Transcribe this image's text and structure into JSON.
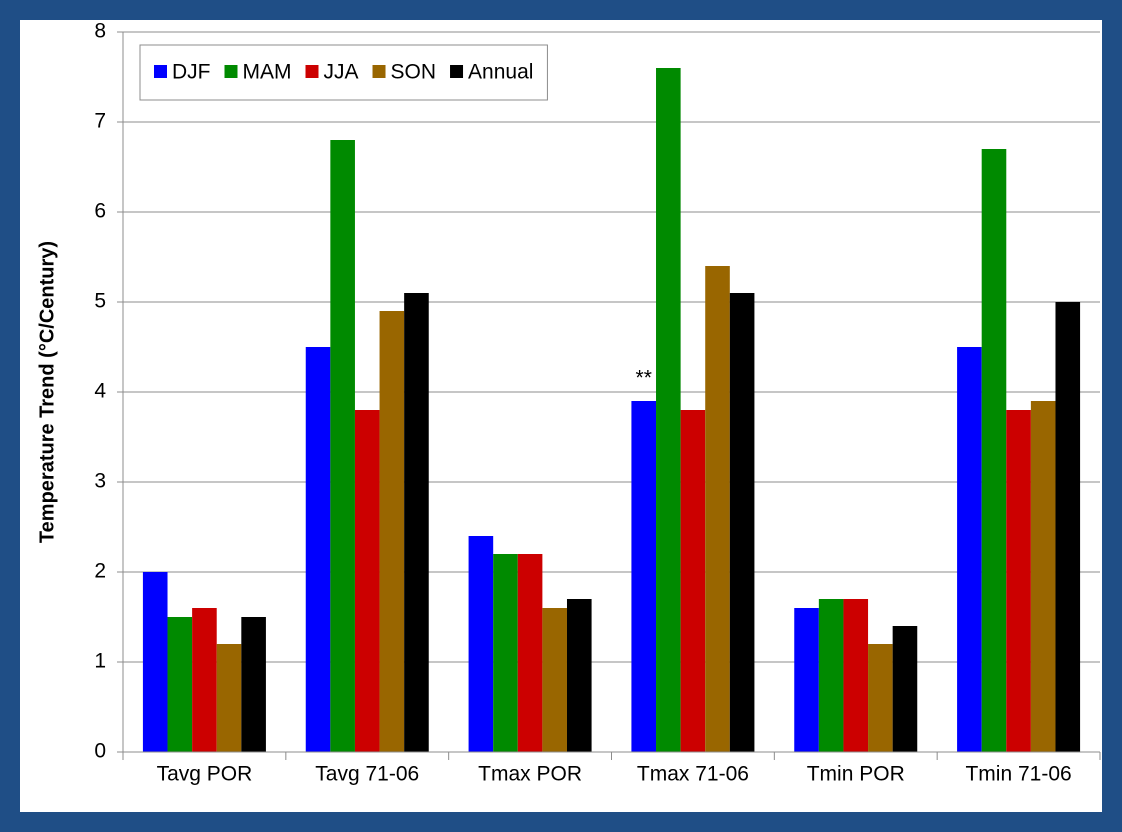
{
  "chart_data": {
    "type": "bar",
    "ylabel": "Temperature Trend (°C/Century)",
    "categories": [
      "Tavg POR",
      "Tavg 71-06",
      "Tmax POR",
      "Tmax 71-06",
      "Tmin POR",
      "Tmin 71-06"
    ],
    "series": [
      {
        "name": "DJF",
        "color": "#0000ff",
        "values": [
          2.0,
          4.5,
          2.4,
          3.9,
          1.6,
          4.5
        ]
      },
      {
        "name": "MAM",
        "color": "#008a00",
        "values": [
          1.5,
          6.8,
          2.2,
          7.6,
          1.7,
          6.7
        ]
      },
      {
        "name": "JJA",
        "color": "#cc0000",
        "values": [
          1.6,
          3.8,
          2.2,
          3.8,
          1.7,
          3.8
        ]
      },
      {
        "name": "SON",
        "color": "#996600",
        "values": [
          1.2,
          4.9,
          1.6,
          5.4,
          1.2,
          3.9
        ]
      },
      {
        "name": "Annual",
        "color": "#000000",
        "values": [
          1.5,
          5.1,
          1.7,
          5.1,
          1.4,
          5.0
        ]
      }
    ],
    "annotations": [
      {
        "text": "**",
        "category": "Tmax 71-06",
        "series": "DJF"
      }
    ],
    "ylim": [
      0,
      8
    ],
    "yticks": [
      0,
      1,
      2,
      3,
      4,
      5,
      6,
      7,
      8
    ],
    "grid": true,
    "legend": "top-left"
  }
}
